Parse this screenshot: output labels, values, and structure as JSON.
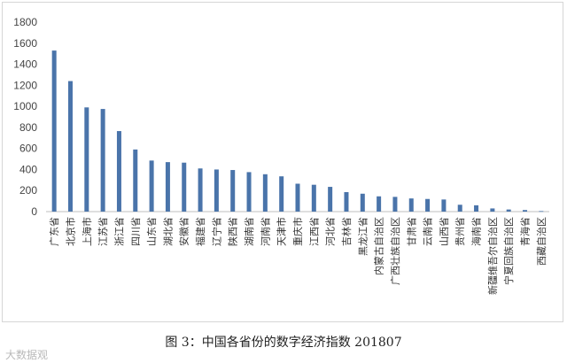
{
  "caption": "图 3：中国各省份的数字经济指数 201807",
  "watermark": "大数据观",
  "colors": {
    "bar": "#4a74aa",
    "axis": "#bfbfbf",
    "frame": "#d6d6d6"
  },
  "chart_data": {
    "type": "bar",
    "title": "",
    "xlabel": "",
    "ylabel": "",
    "ylim": [
      0,
      1800
    ],
    "yticks": [
      0,
      200,
      400,
      600,
      800,
      1000,
      1200,
      1400,
      1600,
      1800
    ],
    "grid": false,
    "categories": [
      "广东省",
      "北京市",
      "上海市",
      "江苏省",
      "浙江省",
      "四川省",
      "山东省",
      "湖北省",
      "安徽省",
      "福建省",
      "辽宁省",
      "陕西省",
      "湖南省",
      "河南省",
      "天津市",
      "重庆市",
      "江西省",
      "河北省",
      "吉林省",
      "黑龙江省",
      "内蒙古自治区",
      "广西壮族自治区",
      "甘肃省",
      "云南省",
      "山西省",
      "贵州省",
      "海南省",
      "新疆维吾尔自治区",
      "宁夏回族自治区",
      "青海省",
      "西藏自治区"
    ],
    "values": [
      1530,
      1240,
      990,
      975,
      765,
      590,
      485,
      470,
      465,
      410,
      400,
      395,
      375,
      355,
      335,
      265,
      255,
      235,
      185,
      170,
      145,
      140,
      125,
      120,
      115,
      65,
      60,
      30,
      20,
      15,
      5
    ]
  }
}
